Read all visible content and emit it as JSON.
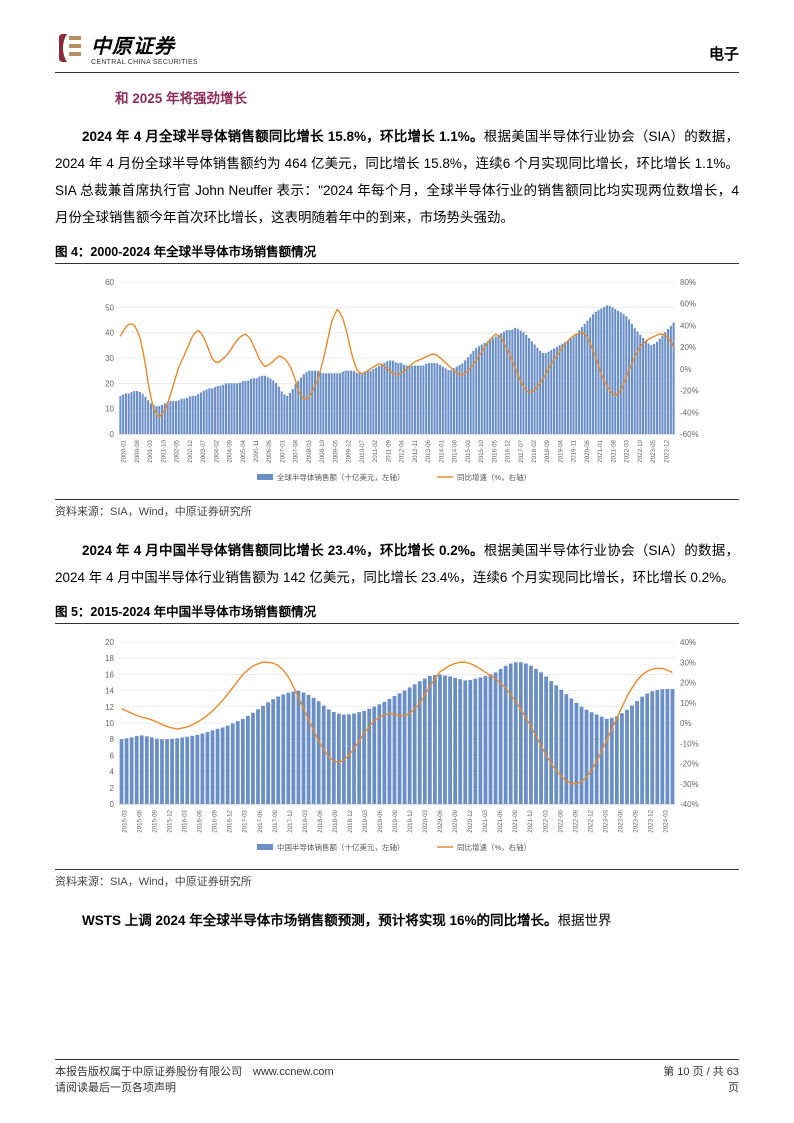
{
  "header": {
    "logo_cn": "中原证券",
    "logo_en": "CENTRAL CHINA SECURITIES",
    "right": "电子",
    "logo_color_primary": "#8b2c3a",
    "logo_color_secondary": "#b89060"
  },
  "subtitle": "和 2025 年将强劲增长",
  "para1": {
    "bold": "2024 年 4 月全球半导体销售额同比增长 15.8%，环比增长 1.1%。",
    "rest": "根据美国半导体行业协会（SIA）的数据，2024 年 4 月份全球半导体销售额约为 464 亿美元，同比增长 15.8%，连续6 个月实现同比增长，环比增长 1.1%。SIA 总裁兼首席执行官 John Neuffer 表示：\"2024 年每个月，全球半导体行业的销售额同比均实现两位数增长，4 月份全球销售额今年首次环比增长，这表明随着年中的到来，市场势头强劲。"
  },
  "fig4": {
    "title": "图 4：2000-2024 年全球半导体市场销售额情况",
    "source": "资料来源：SIA，Wind，中原证券研究所",
    "legend": {
      "bar": "全球半导体销售额（十亿美元，左轴）",
      "line": "同比增速（%，右轴）"
    },
    "chart": {
      "type": "bar+line",
      "ylim_left": [
        0,
        60
      ],
      "ytick_left": [
        0,
        10,
        20,
        30,
        40,
        50,
        60
      ],
      "ylim_right": [
        -60,
        80
      ],
      "ytick_right": [
        "-60%",
        "-40%",
        "-20%",
        "0%",
        "20%",
        "40%",
        "60%",
        "80%"
      ],
      "bar_color": "#6a8fc7",
      "line_color": "#e88a2a",
      "grid_color": "#d9d9d9",
      "background": "#ffffff",
      "label_fontsize": 8,
      "n_bars": 200,
      "xlabels": [
        "2000-01",
        "2000-08",
        "2001-03",
        "2001-10",
        "2002-05",
        "2002-12",
        "2003-07",
        "2004-02",
        "2004-09",
        "2005-04",
        "2005-11",
        "2006-06",
        "2007-01",
        "2007-08",
        "2008-03",
        "2008-10",
        "2009-05",
        "2009-12",
        "2010-07",
        "2011-02",
        "2011-09",
        "2012-04",
        "2012-11",
        "2013-06",
        "2014-01",
        "2014-08",
        "2015-03",
        "2015-10",
        "2016-05",
        "2016-12",
        "2017-07",
        "2018-02",
        "2018-09",
        "2019-04",
        "2019-11",
        "2020-06",
        "2021-01",
        "2021-08",
        "2022-03",
        "2022-10",
        "2023-05",
        "2023-12"
      ],
      "bar_sample": [
        15,
        16,
        16,
        17,
        17,
        16,
        14,
        12,
        11,
        11,
        12,
        13,
        13,
        13,
        14,
        14,
        15,
        15,
        16,
        17,
        18,
        18,
        19,
        19,
        20,
        20,
        20,
        20,
        21,
        21,
        22,
        22,
        23,
        23,
        22,
        21,
        19,
        16,
        15,
        17,
        20,
        22,
        24,
        25,
        25,
        25,
        24,
        24,
        24,
        24,
        24,
        25,
        25,
        25,
        24,
        24,
        25,
        25,
        26,
        27,
        28,
        29,
        29,
        28,
        28,
        27,
        27,
        27,
        27,
        27,
        28,
        28,
        28,
        27,
        26,
        25,
        26,
        27,
        28,
        30,
        32,
        34,
        35,
        36,
        37,
        38,
        39,
        40,
        41,
        41,
        42,
        41,
        40,
        38,
        36,
        34,
        32,
        32,
        33,
        34,
        35,
        36,
        37,
        38,
        40,
        42,
        44,
        46,
        48,
        49,
        50,
        51,
        50,
        49,
        48,
        47,
        45,
        42,
        40,
        38,
        36,
        35,
        36,
        38,
        40,
        42,
        44
      ],
      "line_sample": [
        30,
        38,
        42,
        40,
        30,
        10,
        -20,
        -38,
        -45,
        -40,
        -30,
        -15,
        0,
        10,
        20,
        30,
        36,
        32,
        22,
        10,
        5,
        8,
        12,
        18,
        25,
        30,
        32,
        28,
        18,
        8,
        2,
        4,
        8,
        12,
        10,
        5,
        -5,
        -20,
        -28,
        -28,
        -20,
        -10,
        5,
        25,
        45,
        55,
        50,
        35,
        15,
        0,
        -5,
        -3,
        0,
        3,
        5,
        2,
        -2,
        -5,
        -5,
        -2,
        2,
        6,
        8,
        10,
        12,
        14,
        12,
        8,
        4,
        0,
        -4,
        -6,
        -3,
        2,
        8,
        15,
        22,
        28,
        32,
        30,
        22,
        12,
        2,
        -10,
        -18,
        -22,
        -20,
        -15,
        -8,
        0,
        8,
        14,
        20,
        26,
        30,
        32,
        34,
        30,
        20,
        8,
        -5,
        -15,
        -22,
        -25,
        -20,
        -10,
        2,
        12,
        20,
        25,
        28,
        30,
        32,
        32,
        28,
        20
      ]
    }
  },
  "para2": {
    "bold": "2024 年 4 月中国半导体销售额同比增长 23.4%，环比增长 0.2%。",
    "rest": "根据美国半导体行业协会（SIA）的数据，2024 年 4 月中国半导体行业销售额为 142 亿美元，同比增长 23.4%，连续6 个月实现同比增长，环比增长 0.2%。"
  },
  "fig5": {
    "title": "图 5：2015-2024 年中国半导体市场销售额情况",
    "source": "资料来源：SIA，Wind，中原证券研究所",
    "legend": {
      "bar": "中国半导体销售额（十亿美元，左轴）",
      "line": "同比增速（%，右轴）"
    },
    "chart": {
      "type": "bar+line",
      "ylim_left": [
        0,
        20
      ],
      "ytick_left": [
        0,
        2,
        4,
        6,
        8,
        10,
        12,
        14,
        16,
        18,
        20
      ],
      "ylim_right": [
        -40,
        40
      ],
      "ytick_right": [
        "-40%",
        "-30%",
        "-20%",
        "-10%",
        "0%",
        "10%",
        "20%",
        "30%",
        "40%"
      ],
      "bar_color": "#6a8fc7",
      "line_color": "#e88a2a",
      "grid_color": "#d9d9d9",
      "background": "#ffffff",
      "label_fontsize": 8,
      "n_bars": 110,
      "xlabels": [
        "2015-03",
        "2015-06",
        "2015-09",
        "2015-12",
        "2016-03",
        "2016-06",
        "2016-09",
        "2016-12",
        "2017-03",
        "2017-06",
        "2017-09",
        "2017-12",
        "2018-03",
        "2018-06",
        "2018-09",
        "2018-12",
        "2019-03",
        "2019-06",
        "2019-09",
        "2019-12",
        "2020-03",
        "2020-06",
        "2020-09",
        "2020-12",
        "2021-03",
        "2021-06",
        "2021-09",
        "2021-12",
        "2022-03",
        "2022-06",
        "2022-09",
        "2022-12",
        "2023-03",
        "2023-06",
        "2023-09",
        "2023-12",
        "2024-03"
      ],
      "bar_sample": [
        8,
        8.2,
        8.5,
        8.3,
        8.0,
        8.0,
        8.1,
        8.3,
        8.5,
        8.8,
        9.2,
        9.5,
        10.0,
        10.5,
        11.2,
        12.0,
        12.8,
        13.4,
        13.8,
        14.0,
        13.5,
        12.8,
        11.8,
        11.2,
        11.0,
        11.2,
        11.5,
        12.0,
        12.5,
        13.2,
        13.8,
        14.5,
        15.2,
        15.8,
        16.0,
        15.8,
        15.5,
        15.2,
        15.5,
        15.8,
        16.2,
        17.0,
        17.5,
        17.5,
        17.0,
        16.2,
        15.2,
        14.2,
        13.2,
        12.2,
        11.5,
        11.0,
        10.5,
        10.8,
        11.5,
        12.5,
        13.5,
        14.0,
        14.2,
        14.2
      ],
      "line_sample": [
        7,
        5,
        3,
        2,
        0,
        -2,
        -3,
        -2,
        0,
        3,
        7,
        12,
        18,
        24,
        28,
        30,
        30,
        28,
        22,
        12,
        2,
        -8,
        -16,
        -20,
        -18,
        -12,
        -5,
        1,
        4,
        5,
        3,
        5,
        10,
        18,
        25,
        28,
        30,
        30,
        28,
        25,
        22,
        18,
        12,
        5,
        -3,
        -12,
        -20,
        -26,
        -30,
        -30,
        -26,
        -18,
        -8,
        2,
        12,
        20,
        25,
        27,
        27,
        25
      ]
    }
  },
  "para3": {
    "bold": "WSTS 上调 2024 年全球半导体市场销售额预测，预计将实现 16%的同比增长。",
    "rest": "根据世界"
  },
  "footer": {
    "line1": "本报告版权属于中原证券股份有限公司　www.ccnew.com",
    "line2": "请阅读最后一页各项声明",
    "page": "第 10 页 / 共 63",
    "page2": "页"
  }
}
